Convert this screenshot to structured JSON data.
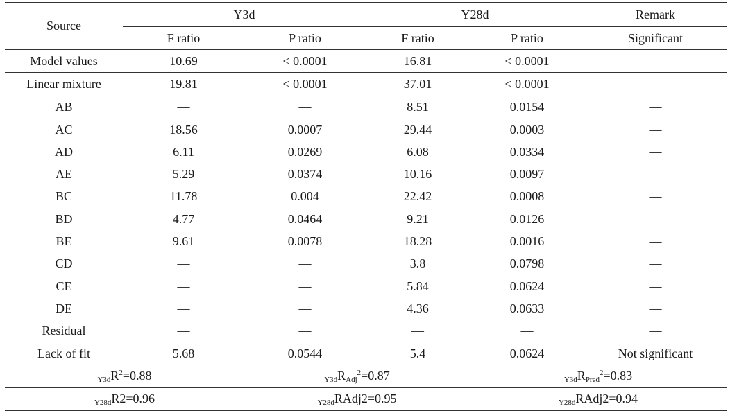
{
  "header": {
    "source": "Source",
    "group1": "Y3d",
    "group2": "Y28d",
    "remark": "Remark",
    "f_ratio": "F ratio",
    "p_ratio": "P ratio",
    "significant": "Significant"
  },
  "rows": [
    {
      "source": "Model values",
      "f3": "10.69",
      "p3": "< 0.0001",
      "f28": "16.81",
      "p28": "< 0.0001",
      "remark": "—"
    },
    {
      "source": "Linear mixture",
      "f3": "19.81",
      "p3": "< 0.0001",
      "f28": "37.01",
      "p28": "< 0.0001",
      "remark": "—"
    },
    {
      "source": "AB",
      "f3": "—",
      "p3": "—",
      "f28": "8.51",
      "p28": "0.0154",
      "remark": "—"
    },
    {
      "source": "AC",
      "f3": "18.56",
      "p3": "0.0007",
      "f28": "29.44",
      "p28": "0.0003",
      "remark": "—"
    },
    {
      "source": "AD",
      "f3": "6.11",
      "p3": "0.0269",
      "f28": "6.08",
      "p28": "0.0334",
      "remark": "—"
    },
    {
      "source": "AE",
      "f3": "5.29",
      "p3": "0.0374",
      "f28": "10.16",
      "p28": "0.0097",
      "remark": "—"
    },
    {
      "source": "BC",
      "f3": "11.78",
      "p3": "0.004",
      "f28": "22.42",
      "p28": "0.0008",
      "remark": "—"
    },
    {
      "source": "BD",
      "f3": "4.77",
      "p3": "0.0464",
      "f28": "9.21",
      "p28": "0.0126",
      "remark": "—"
    },
    {
      "source": "BE",
      "f3": "9.61",
      "p3": "0.0078",
      "f28": "18.28",
      "p28": "0.0016",
      "remark": "—"
    },
    {
      "source": "CD",
      "f3": "—",
      "p3": "—",
      "f28": "3.8",
      "p28": "0.0798",
      "remark": "—"
    },
    {
      "source": "CE",
      "f3": "—",
      "p3": "—",
      "f28": "5.84",
      "p28": "0.0624",
      "remark": "—"
    },
    {
      "source": "DE",
      "f3": "—",
      "p3": "—",
      "f28": "4.36",
      "p28": "0.0633",
      "remark": "—"
    },
    {
      "source": "Residual",
      "f3": "—",
      "p3": "—",
      "f28": "—",
      "p28": "—",
      "remark": "—"
    },
    {
      "source": "Lack of fit",
      "f3": "5.68",
      "p3": "0.0544",
      "f28": "5.4",
      "p28": "0.0624",
      "remark": "Not significant"
    }
  ],
  "fit": {
    "y3d": {
      "prefix": "Y3d",
      "r2_main": "R",
      "r2_sup": "2",
      "r2_val": "=0.88",
      "radj_main": "R",
      "radj_sub": "Adj",
      "radj_sup": "2",
      "radj_val": "=0.87",
      "rpred_main": "R",
      "rpred_sub": "Pred",
      "rpred_sup": "2",
      "rpred_val": "=0.83"
    },
    "y28d": {
      "prefix": "Y28d",
      "r2": "R2=0.96",
      "radj": "RAdj2=0.95",
      "radj2": "RAdj2=0.94"
    }
  }
}
